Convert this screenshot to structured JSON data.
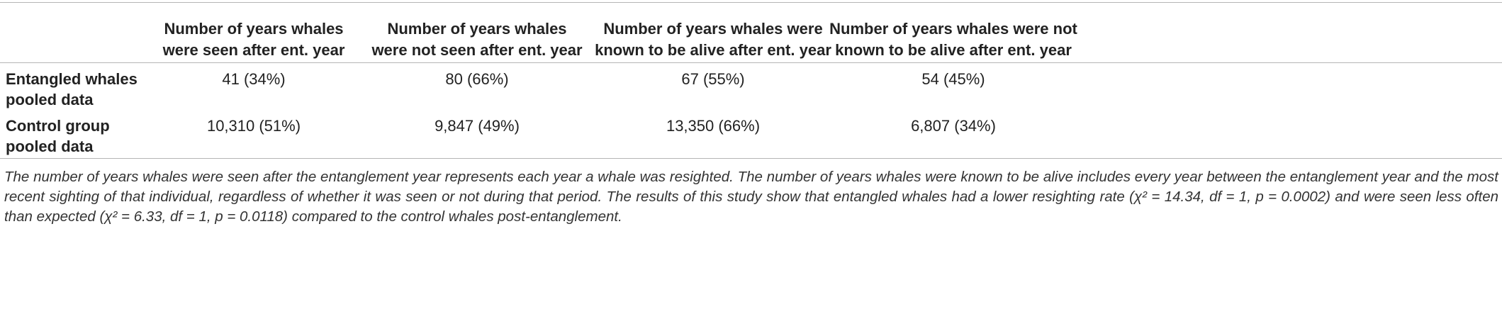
{
  "table": {
    "header": [
      [],
      [
        "Number of years whales",
        "were seen after ent. year"
      ],
      [
        "Number of years whales",
        "were not seen after ent. year"
      ],
      [
        "Number of years whales were",
        "known to be alive after ent. year"
      ],
      [
        "Number of years whales were not",
        "known to be alive after ent. year"
      ]
    ],
    "rows": [
      {
        "label": [
          "Entangled whales",
          "pooled data"
        ],
        "cells": [
          "41 (34%)",
          "80 (66%)",
          "67 (55%)",
          "54 (45%)"
        ]
      },
      {
        "label": [
          "Control group",
          "pooled data"
        ],
        "cells": [
          "10,310 (51%)",
          "9,847 (49%)",
          "13,350 (66%)",
          "6,807 (34%)"
        ]
      }
    ],
    "footnote": "The number of years whales were seen after the entanglement year represents each year a whale was resighted. The number of years whales were known to be alive includes every year between the entanglement year and the most recent sighting of that individual, regardless of whether it was seen or not during that period. The results of this study show that entangled whales had a lower resighting rate (χ² = 14.34, df = 1, p = 0.0002) and were seen less often than expected (χ² = 6.33, df = 1, p = 0.0118) compared to the control whales post-entanglement."
  }
}
